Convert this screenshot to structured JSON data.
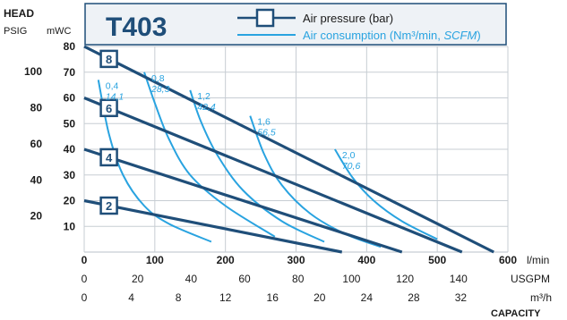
{
  "header": {
    "head_label": "HEAD",
    "psig_label": "PSIG",
    "mwc_label": "mWC",
    "model": "T403"
  },
  "legend": {
    "pressure_label": "Air pressure (bar)",
    "consumption_label_main": "Air consumption (Nm³/min, ",
    "consumption_label_italic": "SCFM",
    "consumption_label_end": ")"
  },
  "colors": {
    "pressure_line": "#1f4e79",
    "consumption_line": "#29a3e0",
    "grid": "#c7cdd3",
    "text": "#1a1a1a",
    "header_box_fill": "#eef2f6",
    "header_box_border": "#1f4e79"
  },
  "axis_units": {
    "lmin": "l/min",
    "usgpm": "USGPM",
    "m3h": "m³/h",
    "capacity": "CAPACITY"
  },
  "chart_data": {
    "type": "line",
    "title": "T403",
    "xlabel": "CAPACITY",
    "ylabel": "HEAD",
    "x_unit": "l/min",
    "xlim": [
      0,
      600
    ],
    "ylim_mwc": [
      0,
      80
    ],
    "ylim_psig": [
      0,
      114
    ],
    "grid": true,
    "x_ticks_lmin": [
      0,
      100,
      200,
      300,
      400,
      500,
      600
    ],
    "x_ticks_usgpm": [
      0,
      20,
      40,
      60,
      80,
      100,
      120,
      140
    ],
    "x_ticks_m3h": [
      0,
      4,
      8,
      12,
      16,
      20,
      24,
      28,
      32
    ],
    "y_ticks_mwc": [
      10,
      20,
      30,
      40,
      50,
      60,
      70,
      80
    ],
    "y_ticks_psig": [
      20,
      40,
      60,
      80,
      100
    ],
    "pressure_series": [
      {
        "name": "8",
        "points": [
          [
            0,
            80
          ],
          [
            580,
            0
          ]
        ]
      },
      {
        "name": "6",
        "points": [
          [
            0,
            60
          ],
          [
            535,
            0
          ]
        ]
      },
      {
        "name": "4",
        "points": [
          [
            0,
            40
          ],
          [
            450,
            0
          ]
        ]
      },
      {
        "name": "2",
        "points": [
          [
            0,
            20
          ],
          [
            365,
            0
          ]
        ]
      }
    ],
    "consumption_series": [
      {
        "name": "0,4",
        "name2": "14,1",
        "points": [
          [
            20,
            67
          ],
          [
            35,
            46
          ],
          [
            55,
            30
          ],
          [
            85,
            18
          ],
          [
            120,
            11
          ],
          [
            180,
            4
          ]
        ]
      },
      {
        "name": "0,8",
        "name2": "28,3",
        "points": [
          [
            85,
            70
          ],
          [
            100,
            58
          ],
          [
            120,
            44
          ],
          [
            150,
            30
          ],
          [
            200,
            18
          ],
          [
            270,
            6
          ]
        ]
      },
      {
        "name": "1,2",
        "name2": "42,4",
        "points": [
          [
            150,
            63
          ],
          [
            165,
            51
          ],
          [
            188,
            38
          ],
          [
            225,
            24
          ],
          [
            280,
            12
          ],
          [
            340,
            4
          ]
        ]
      },
      {
        "name": "1,6",
        "name2": "56,5",
        "points": [
          [
            235,
            53
          ],
          [
            255,
            38
          ],
          [
            280,
            26
          ],
          [
            320,
            15
          ],
          [
            370,
            7
          ],
          [
            420,
            2
          ]
        ]
      },
      {
        "name": "2,0",
        "name2": "70,6",
        "points": [
          [
            355,
            40
          ],
          [
            380,
            29
          ],
          [
            410,
            20
          ],
          [
            450,
            12
          ],
          [
            500,
            5
          ]
        ]
      }
    ]
  }
}
